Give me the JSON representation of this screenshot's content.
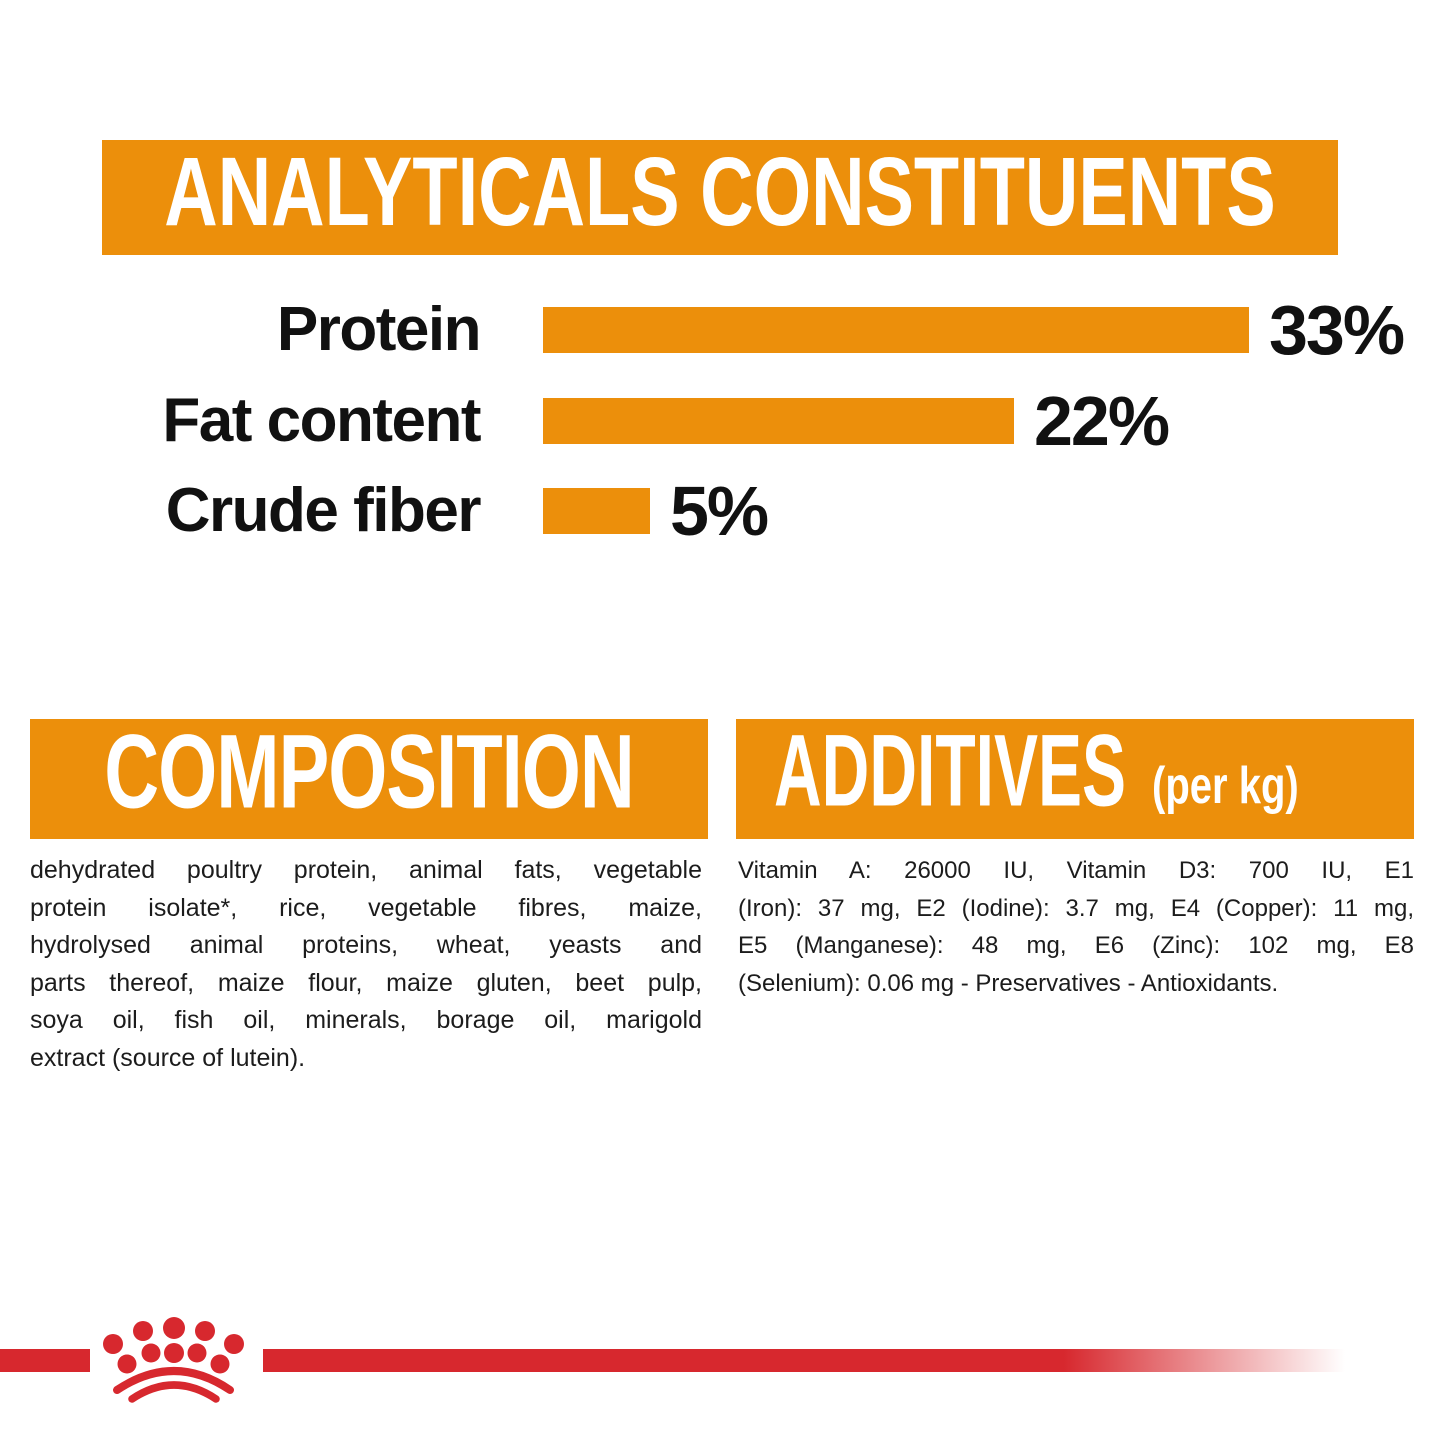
{
  "colors": {
    "orange": "#EC8F0B",
    "red": "#D7282E",
    "text": "#1C1C1C",
    "white": "#FFFFFF"
  },
  "analyticals": {
    "title": "ANALYTICALS CONSTITUENTS",
    "chart_data": {
      "type": "bar",
      "orientation": "horizontal",
      "title": "ANALYTICALS CONSTITUENTS",
      "categories": [
        "Protein",
        "Fat content",
        "Crude fiber"
      ],
      "values": [
        33,
        22,
        5
      ],
      "value_labels": [
        "33%",
        "22%",
        "5%"
      ],
      "unit": "%",
      "xlim": [
        0,
        35
      ],
      "grid": false,
      "legend": "none",
      "bar_color": "#EC8F0B"
    }
  },
  "composition": {
    "title": "COMPOSITION",
    "lines": [
      "dehydrated poultry protein, animal fats, vegetable",
      "protein isolate*, rice, vegetable fibres, maize,",
      "hydrolysed animal proteins, wheat, yeasts and",
      "parts thereof, maize flour, maize gluten, beet pulp,",
      "soya oil, fish oil, minerals, borage oil, marigold",
      "extract (source of lutein)."
    ],
    "text": "dehydrated poultry protein, animal fats, vegetable protein isolate*, rice, vegetable fibres, maize, hydrolysed animal proteins, wheat, yeasts and parts thereof, maize flour, maize gluten, beet pulp, soya oil, fish oil, minerals, borage oil, marigold extract (source of lutein)."
  },
  "additives": {
    "title": "ADDITIVES",
    "unit_note": "(per kg)",
    "lines": [
      "Vitamin A: 26000 IU, Vitamin D3: 700 IU, E1",
      "(Iron): 37 mg, E2 (Iodine): 3.7 mg, E4 (Copper): 11 mg,",
      "E5 (Manganese): 48 mg, E6 (Zinc): 102 mg, E8",
      "(Selenium): 0.06 mg - Preservatives - Antioxidants."
    ],
    "text": "Vitamin A: 26000 IU, Vitamin D3: 700 IU, E1 (Iron): 37 mg, E2 (Iodine): 3.7 mg, E4 (Copper): 11 mg, E5 (Manganese): 48 mg, E6 (Zinc): 102 mg, E8 (Selenium): 0.06 mg - Preservatives - Antioxidants."
  },
  "footer": {
    "brand_logo": "royal-canin-crown"
  }
}
